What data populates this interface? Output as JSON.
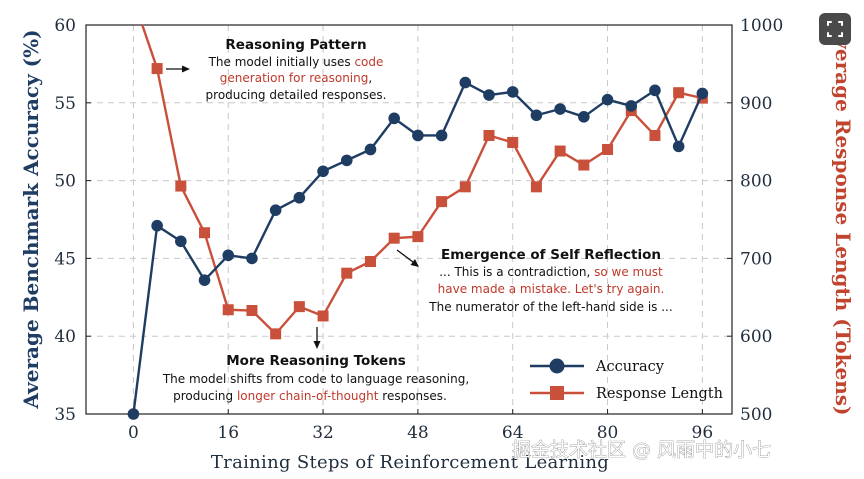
{
  "chart_data": {
    "type": "line",
    "xlabel": "Training Steps of Reinforcement Learning",
    "ylabel_left": "Average Benchmark Accuracy (%)",
    "ylabel_right": "Average Response Length (Tokens)",
    "x_ticks": [
      "0",
      "16",
      "32",
      "48",
      "64",
      "80",
      "96"
    ],
    "y_left_ticks": [
      "35",
      "40",
      "45",
      "50",
      "55",
      "60"
    ],
    "y_right_ticks": [
      "500",
      "600",
      "700",
      "800",
      "900",
      "1000"
    ],
    "xlim": [
      -8,
      101
    ],
    "ylim_left": [
      35,
      60
    ],
    "ylim_right": [
      500,
      1000
    ],
    "grid": true,
    "legend_position": "bottom-right",
    "series": [
      {
        "name": "Accuracy",
        "axis": "left",
        "color": "#1f3d63",
        "marker": "circle",
        "x": [
          0,
          4,
          8,
          12,
          16,
          20,
          24,
          28,
          32,
          36,
          40,
          44,
          48,
          52,
          56,
          60,
          64,
          68,
          72,
          76,
          80,
          84,
          88,
          92,
          96
        ],
        "y": [
          35.0,
          47.1,
          46.1,
          43.6,
          45.2,
          45.0,
          48.1,
          48.9,
          50.6,
          51.3,
          52.0,
          54.0,
          52.9,
          52.9,
          56.3,
          55.5,
          55.7,
          54.2,
          54.6,
          54.1,
          55.2,
          54.8,
          55.8,
          52.2,
          55.6
        ]
      },
      {
        "name": "Response Length",
        "axis": "right",
        "color": "#c9503a",
        "marker": "square",
        "x": [
          4,
          8,
          12,
          16,
          20,
          24,
          28,
          32,
          36,
          40,
          44,
          48,
          52,
          56,
          60,
          64,
          68,
          72,
          76,
          80,
          84,
          88,
          92,
          96
        ],
        "y": [
          944,
          793,
          733,
          634,
          633,
          603,
          638,
          626,
          681,
          696,
          726,
          728,
          773,
          792,
          858,
          849,
          792,
          838,
          820,
          840,
          890,
          858,
          913,
          906
        ]
      }
    ],
    "response_length_curve_start": {
      "x": 1.5,
      "y": 1000
    }
  },
  "annotations": {
    "reasoning_pattern": {
      "title": "Reasoning Pattern",
      "line1_a": "The model initially uses ",
      "line1_b": "code",
      "line2_a": "generation for reasoning",
      "line2_b": ",",
      "line3": "producing detailed responses."
    },
    "self_reflection": {
      "title": "Emergence of Self Reflection",
      "line1_a": "... This is a contradiction, ",
      "line1_b": "so we must",
      "line2": "have made a mistake. Let's try again.",
      "line3": "The numerator of the left-hand side is ..."
    },
    "more_tokens": {
      "title": "More Reasoning Tokens",
      "line1": "The model shifts from code to language reasoning,",
      "line2_a": "producing ",
      "line2_b": "longer chain-of-thought",
      "line2_c": " responses."
    }
  },
  "watermark": "掘金技术社区 @ 风雨中的小七",
  "colors": {
    "accuracy": "#1f3d63",
    "response_length": "#c9503a",
    "highlight_text": "#c0392b",
    "grid": "#c8c8c8"
  }
}
